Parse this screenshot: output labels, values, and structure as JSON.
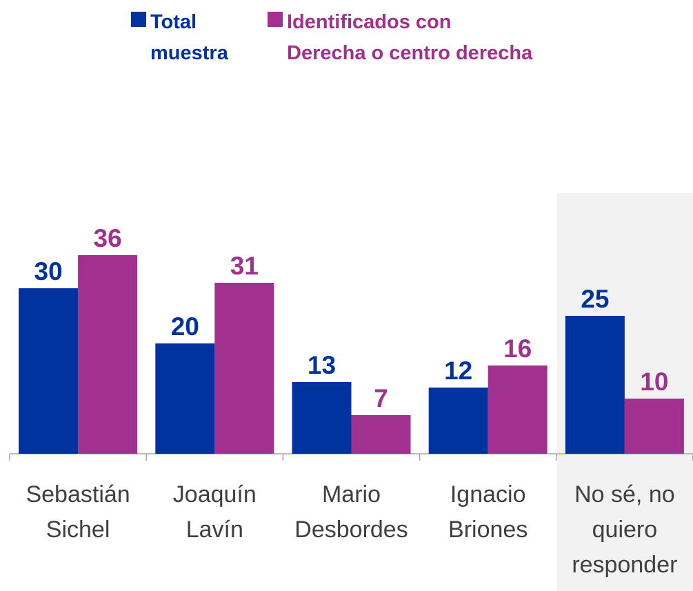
{
  "chart_data": {
    "type": "bar",
    "categories": [
      "Sebastián\nSichel",
      "Joaquín\nLavín",
      "Mario\nDesbordes",
      "Ignacio\nBriones",
      "No sé, no\nquiero\nresponder"
    ],
    "series": [
      {
        "name": "Total\nmuestra",
        "color": "#0033a0",
        "values": [
          30,
          20,
          13,
          12,
          25
        ]
      },
      {
        "name": "Identificados con\nDerecha o centro derecha",
        "color": "#a2308f",
        "values": [
          36,
          31,
          7,
          16,
          10
        ]
      }
    ],
    "ylim": [
      0,
      60
    ]
  }
}
